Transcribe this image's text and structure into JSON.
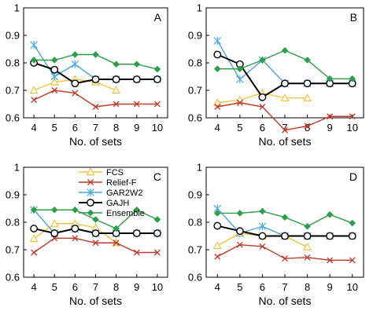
{
  "chart_data": [
    {
      "type": "line",
      "panel_label": "A",
      "xlabel": "No. of sets",
      "ylabel": "",
      "xlim": [
        3.5,
        10.5
      ],
      "ylim": [
        0.6,
        1.0
      ],
      "xticks": [
        4,
        5,
        6,
        7,
        8,
        9,
        10
      ],
      "yticks": [
        0.6,
        0.7,
        0.8,
        0.9,
        1.0
      ],
      "ytick_labels": [
        "0.6",
        "0.7",
        "0.8",
        "0.9",
        "1"
      ],
      "series": [
        {
          "name": "FCS",
          "x": [
            4,
            5,
            6,
            7,
            8
          ],
          "values": [
            0.7,
            0.73,
            0.74,
            0.73,
            0.7
          ]
        },
        {
          "name": "Relief-F",
          "x": [
            4,
            5,
            6,
            7,
            8,
            9,
            10
          ],
          "values": [
            0.665,
            0.7,
            0.69,
            0.64,
            0.65,
            0.65,
            0.65
          ]
        },
        {
          "name": "GAR2W2",
          "x": [
            4,
            5,
            6,
            7,
            8,
            9,
            10
          ],
          "values": [
            0.865,
            0.75,
            0.795,
            0.74,
            0.74,
            0.74,
            0.74
          ]
        },
        {
          "name": "GAJH",
          "x": [
            4,
            5,
            6,
            7,
            8,
            9,
            10
          ],
          "values": [
            0.8,
            0.775,
            0.725,
            0.74,
            0.74,
            0.74,
            0.74
          ]
        },
        {
          "name": "Ensemble",
          "x": [
            4,
            5,
            6,
            7,
            8,
            9,
            10
          ],
          "values": [
            0.81,
            0.81,
            0.83,
            0.83,
            0.795,
            0.795,
            0.777
          ]
        }
      ]
    },
    {
      "type": "line",
      "panel_label": "B",
      "xlabel": "No. of sets",
      "ylabel": "",
      "xlim": [
        3.5,
        10.5
      ],
      "ylim": [
        0.6,
        1.0
      ],
      "xticks": [
        4,
        5,
        6,
        7,
        8,
        9,
        10
      ],
      "yticks": [
        0.6,
        0.7,
        0.8,
        0.9,
        1.0
      ],
      "ytick_labels": [
        "0.6",
        "0.7",
        "0.8",
        "0.9",
        "1"
      ],
      "series": [
        {
          "name": "FCS",
          "x": [
            4,
            5,
            6,
            7,
            8
          ],
          "values": [
            0.655,
            0.665,
            0.69,
            0.672,
            0.672
          ]
        },
        {
          "name": "Relief-F",
          "x": [
            4,
            5,
            6,
            7,
            8,
            9,
            10
          ],
          "values": [
            0.64,
            0.655,
            0.64,
            0.555,
            0.57,
            0.605,
            0.605
          ]
        },
        {
          "name": "GAR2W2",
          "x": [
            4,
            5,
            6,
            7,
            8,
            9,
            10
          ],
          "values": [
            0.88,
            0.74,
            0.81,
            0.725,
            0.725,
            0.725,
            0.725
          ]
        },
        {
          "name": "GAJH",
          "x": [
            4,
            5,
            6,
            7,
            8,
            9,
            10
          ],
          "values": [
            0.83,
            0.795,
            0.675,
            0.725,
            0.725,
            0.725,
            0.725
          ]
        },
        {
          "name": "Ensemble",
          "x": [
            4,
            5,
            6,
            7,
            8,
            9,
            10
          ],
          "values": [
            0.778,
            0.778,
            0.81,
            0.845,
            0.81,
            0.742,
            0.742
          ]
        }
      ]
    },
    {
      "type": "line",
      "panel_label": "C",
      "xlabel": "No. of sets",
      "ylabel": "",
      "xlim": [
        3.5,
        10.5
      ],
      "ylim": [
        0.6,
        1.0
      ],
      "xticks": [
        4,
        5,
        6,
        7,
        8,
        9,
        10
      ],
      "yticks": [
        0.6,
        0.7,
        0.8,
        0.9,
        1.0
      ],
      "ytick_labels": [
        "0.6",
        "0.7",
        "0.8",
        "0.9",
        "1"
      ],
      "legend_position": "top-left",
      "series": [
        {
          "name": "FCS",
          "x": [
            4,
            5,
            6,
            7,
            8
          ],
          "values": [
            0.74,
            0.795,
            0.795,
            0.78,
            0.725
          ]
        },
        {
          "name": "Relief-F",
          "x": [
            4,
            5,
            6,
            7,
            8,
            9,
            10
          ],
          "values": [
            0.69,
            0.742,
            0.742,
            0.725,
            0.725,
            0.69,
            0.69
          ]
        },
        {
          "name": "GAR2W2",
          "x": [
            4,
            5,
            6,
            7,
            8,
            9,
            10
          ],
          "values": [
            0.845,
            0.76,
            0.775,
            0.76,
            0.76,
            0.76,
            0.76
          ]
        },
        {
          "name": "GAJH",
          "x": [
            4,
            5,
            6,
            7,
            8,
            9,
            10
          ],
          "values": [
            0.777,
            0.76,
            0.777,
            0.76,
            0.76,
            0.76,
            0.76
          ]
        },
        {
          "name": "Ensemble",
          "x": [
            4,
            5,
            6,
            7,
            8,
            9,
            10
          ],
          "values": [
            0.845,
            0.845,
            0.845,
            0.81,
            0.777,
            0.845,
            0.81
          ]
        }
      ]
    },
    {
      "type": "line",
      "panel_label": "D",
      "xlabel": "No. of sets",
      "ylabel": "",
      "xlim": [
        3.5,
        10.5
      ],
      "ylim": [
        0.6,
        1.0
      ],
      "xticks": [
        4,
        5,
        6,
        7,
        8,
        9,
        10
      ],
      "yticks": [
        0.6,
        0.7,
        0.8,
        0.9,
        1.0
      ],
      "ytick_labels": [
        "0.6",
        "0.7",
        "0.8",
        "0.9",
        "1"
      ],
      "series": [
        {
          "name": "FCS",
          "x": [
            4,
            5,
            6,
            7,
            8
          ],
          "values": [
            0.715,
            0.76,
            0.75,
            0.75,
            0.71
          ]
        },
        {
          "name": "Relief-F",
          "x": [
            4,
            5,
            6,
            7,
            8,
            9,
            10
          ],
          "values": [
            0.675,
            0.718,
            0.712,
            0.668,
            0.672,
            0.662,
            0.662
          ]
        },
        {
          "name": "GAR2W2",
          "x": [
            4,
            5,
            6,
            7,
            8,
            9,
            10
          ],
          "values": [
            0.85,
            0.76,
            0.785,
            0.75,
            0.75,
            0.75,
            0.75
          ]
        },
        {
          "name": "GAJH",
          "x": [
            4,
            5,
            6,
            7,
            8,
            9,
            10
          ],
          "values": [
            0.787,
            0.768,
            0.75,
            0.75,
            0.75,
            0.75,
            0.75
          ]
        },
        {
          "name": "Ensemble",
          "x": [
            4,
            5,
            6,
            7,
            8,
            9,
            10
          ],
          "values": [
            0.833,
            0.833,
            0.84,
            0.818,
            0.785,
            0.828,
            0.797
          ]
        }
      ]
    }
  ],
  "legend": {
    "entries": [
      "FCS",
      "Relief-F",
      "GAR2W2",
      "GAJH",
      "Ensemble"
    ]
  },
  "styles": {
    "FCS": {
      "color": "#f5c342",
      "marker": "triangle",
      "width": 1.4
    },
    "Relief-F": {
      "color": "#c0392b",
      "marker": "x",
      "width": 1.4
    },
    "GAR2W2": {
      "color": "#4aa8de",
      "marker": "star",
      "width": 1.4
    },
    "GAJH": {
      "color": "#000000",
      "marker": "circle",
      "width": 2.0
    },
    "Ensemble": {
      "color": "#2e9e4b",
      "marker": "diamond",
      "width": 1.4
    }
  }
}
